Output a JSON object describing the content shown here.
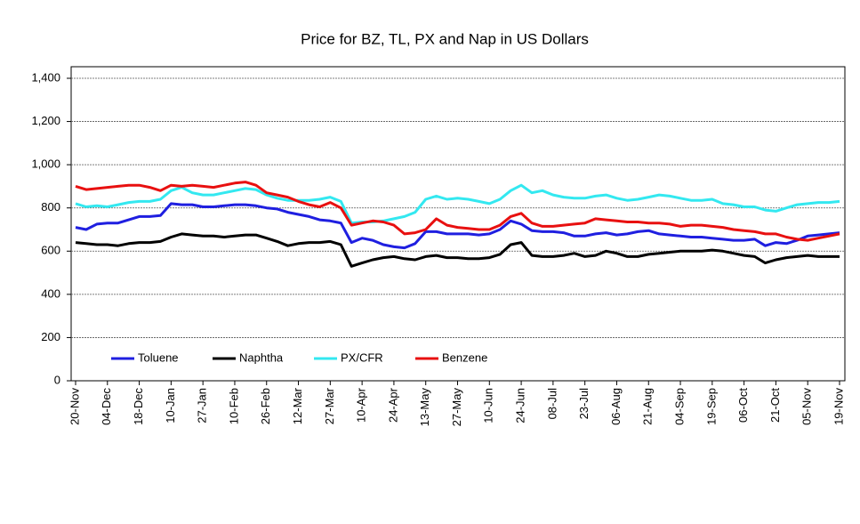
{
  "chart_data": {
    "type": "line",
    "title": "Price for BZ, TL, PX and Nap in US Dollars",
    "categories": [
      "20-Nov",
      null,
      null,
      "04-Dec",
      null,
      null,
      "18-Dec",
      null,
      null,
      "10-Jan",
      null,
      null,
      "27-Jan",
      null,
      null,
      "10-Feb",
      null,
      null,
      "26-Feb",
      null,
      null,
      "12-Mar",
      null,
      null,
      "27-Mar",
      null,
      null,
      "10-Apr",
      null,
      null,
      "24-Apr",
      null,
      null,
      "13-May",
      null,
      null,
      "27-May",
      null,
      null,
      "10-Jun",
      null,
      null,
      "24-Jun",
      null,
      null,
      "08-Jul",
      null,
      null,
      "23-Jul",
      null,
      null,
      "06-Aug",
      null,
      null,
      "21-Aug",
      null,
      null,
      "04-Sep",
      null,
      null,
      "19-Sep",
      null,
      null,
      "06-Oct",
      null,
      null,
      "21-Oct",
      null,
      null,
      "05-Nov",
      null,
      null,
      "19-Nov"
    ],
    "series": [
      {
        "name": "Toluene",
        "color": "#1f1fe0",
        "values": [
          710,
          700,
          725,
          730,
          730,
          745,
          760,
          760,
          765,
          820,
          815,
          815,
          805,
          805,
          810,
          815,
          815,
          810,
          800,
          795,
          780,
          770,
          760,
          745,
          740,
          730,
          640,
          660,
          650,
          630,
          620,
          615,
          635,
          690,
          690,
          680,
          680,
          680,
          675,
          680,
          700,
          740,
          725,
          695,
          690,
          690,
          685,
          670,
          670,
          680,
          685,
          675,
          680,
          690,
          695,
          680,
          675,
          670,
          665,
          665,
          660,
          655,
          650,
          650,
          655,
          625,
          640,
          635,
          650,
          670,
          675,
          680,
          685
        ]
      },
      {
        "name": "Naphtha",
        "color": "#000000",
        "values": [
          640,
          635,
          630,
          630,
          625,
          635,
          640,
          640,
          645,
          665,
          680,
          675,
          670,
          670,
          665,
          670,
          675,
          675,
          660,
          645,
          625,
          635,
          640,
          640,
          645,
          630,
          530,
          545,
          560,
          570,
          575,
          565,
          560,
          575,
          580,
          570,
          570,
          565,
          565,
          570,
          585,
          630,
          640,
          580,
          575,
          575,
          580,
          590,
          575,
          580,
          600,
          590,
          575,
          575,
          585,
          590,
          595,
          600,
          600,
          600,
          605,
          600,
          590,
          580,
          575,
          545,
          560,
          570,
          575,
          580,
          575,
          575,
          575
        ]
      },
      {
        "name": "PX/CFR",
        "color": "#33e8f0",
        "values": [
          820,
          805,
          810,
          805,
          815,
          825,
          830,
          830,
          840,
          880,
          895,
          870,
          860,
          860,
          870,
          880,
          890,
          885,
          860,
          845,
          835,
          835,
          835,
          840,
          850,
          830,
          730,
          735,
          735,
          740,
          750,
          760,
          780,
          840,
          855,
          840,
          845,
          840,
          830,
          820,
          840,
          880,
          905,
          870,
          880,
          860,
          850,
          845,
          845,
          855,
          860,
          845,
          835,
          840,
          850,
          860,
          855,
          845,
          835,
          835,
          840,
          820,
          815,
          805,
          805,
          790,
          785,
          800,
          815,
          820,
          825,
          825,
          830
        ]
      },
      {
        "name": "Benzene",
        "color": "#e81010",
        "values": [
          900,
          885,
          890,
          895,
          900,
          905,
          905,
          895,
          880,
          905,
          900,
          905,
          900,
          895,
          905,
          915,
          920,
          905,
          870,
          860,
          850,
          830,
          815,
          805,
          825,
          800,
          720,
          730,
          740,
          735,
          720,
          680,
          685,
          700,
          750,
          720,
          710,
          705,
          700,
          700,
          720,
          760,
          775,
          730,
          715,
          715,
          720,
          725,
          730,
          750,
          745,
          740,
          735,
          735,
          730,
          730,
          725,
          715,
          720,
          720,
          715,
          710,
          700,
          695,
          690,
          680,
          680,
          665,
          655,
          650,
          660,
          670,
          680
        ]
      }
    ],
    "ylim": [
      0,
      1400
    ],
    "yticks": [
      0,
      200,
      400,
      600,
      800,
      {
        "value": 1000,
        "label": "1,000"
      },
      {
        "value": 1200,
        "label": "1,200"
      },
      {
        "value": 1400,
        "label": "1,400"
      }
    ],
    "grid": true,
    "legend": "lower left"
  }
}
